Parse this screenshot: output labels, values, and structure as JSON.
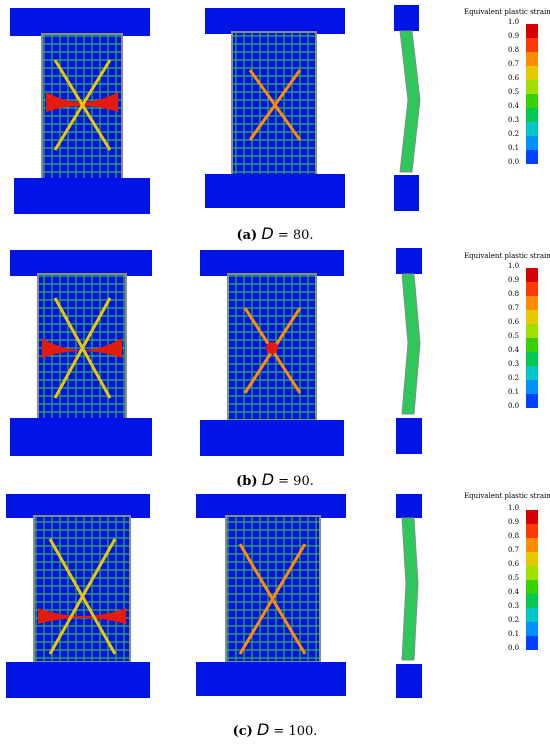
{
  "legend": {
    "title": "Equivalent plastic strain",
    "ticks": [
      "1.0",
      "0.9",
      "0.8",
      "0.7",
      "0.6",
      "0.5",
      "0.4",
      "0.3",
      "0.2",
      "0.1",
      "0.0"
    ],
    "colors": [
      "#d80000",
      "#ff3a00",
      "#ff8c00",
      "#e8c800",
      "#a0e000",
      "#38d000",
      "#00c850",
      "#00c8c8",
      "#0090ff",
      "#0040ff",
      "#0000d8"
    ]
  },
  "panels": [
    {
      "label": "(a)",
      "symbol": "D",
      "value": "= 80."
    },
    {
      "label": "(b)",
      "symbol": "D",
      "value": "= 90."
    },
    {
      "label": "(c)",
      "symbol": "D",
      "value": "= 100."
    }
  ],
  "colors": {
    "blue": "#0014e6",
    "mesh_green": "#3cc83c",
    "high_strain": "#e41a0a"
  }
}
